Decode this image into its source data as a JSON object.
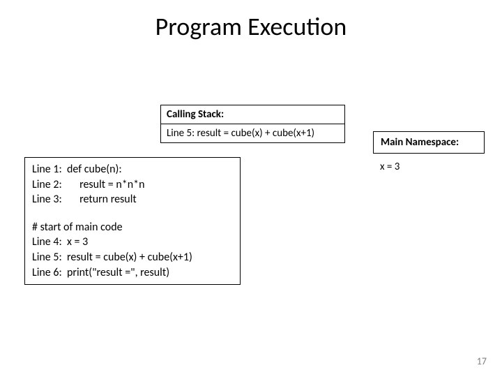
{
  "title": "Program Execution",
  "stack": {
    "header": "Calling Stack:",
    "entry": "Line 5: result = cube(x) + cube(x+1)"
  },
  "namespace": {
    "header": "Main Namespace:",
    "value": "x = 3"
  },
  "code": {
    "l1": "Line 1:  def cube(n):",
    "l2": "Line 2:       result = n*n*n",
    "l3": "Line 3:       return result",
    "c1": "# start of main code",
    "l4": "Line 4:  x = 3",
    "l5": "Line 5:  result = cube(x) + cube(x+1)",
    "l6": "Line 6:  print(\"result =\", result)"
  },
  "page": "17"
}
